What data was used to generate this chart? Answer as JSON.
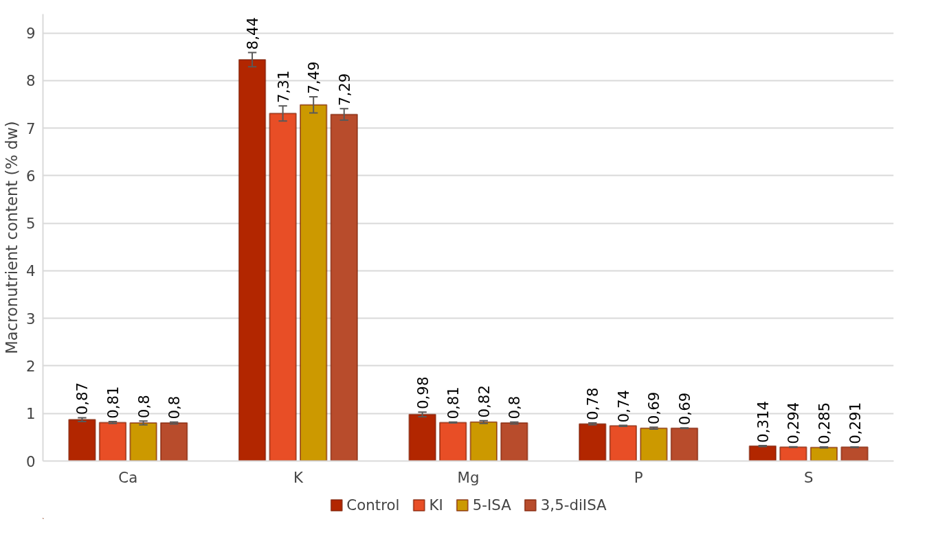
{
  "chart_data": {
    "type": "bar",
    "ylabel": "Macronutrient content (% dw)",
    "categories": [
      "Ca",
      "K",
      "Mg",
      "P",
      "S"
    ],
    "series": [
      {
        "name": "Control",
        "color": "#b22600",
        "values": [
          0.87,
          8.44,
          0.98,
          0.78,
          0.314
        ],
        "errors": [
          0.04,
          0.15,
          0.05,
          0.02,
          0.01
        ],
        "value_labels": [
          "0,87",
          "8,44",
          "0,98",
          "0,78",
          "0,314"
        ]
      },
      {
        "name": "KI",
        "color": "#e84e26",
        "values": [
          0.81,
          7.31,
          0.81,
          0.74,
          0.294
        ],
        "errors": [
          0.02,
          0.16,
          0.01,
          0.01,
          0.005
        ],
        "value_labels": [
          "0,81",
          "7,31",
          "0,81",
          "0,74",
          "0,294"
        ]
      },
      {
        "name": "5-ISA",
        "color": "#cc9900",
        "values": [
          0.8,
          7.49,
          0.82,
          0.69,
          0.285
        ],
        "errors": [
          0.04,
          0.17,
          0.03,
          0.02,
          0.01
        ],
        "value_labels": [
          "0,8",
          "7,49",
          "0,82",
          "0,69",
          "0,285"
        ]
      },
      {
        "name": "3,5-diISA",
        "color": "#b84c2c",
        "values": [
          0.8,
          7.29,
          0.8,
          0.69,
          0.291
        ],
        "errors": [
          0.02,
          0.12,
          0.02,
          0.005,
          0.005
        ],
        "value_labels": [
          "0,8",
          "7,29",
          "0,8",
          "0,69",
          "0,291"
        ]
      }
    ],
    "ylim": [
      0,
      9.4
    ],
    "yticks": [
      0,
      1,
      2,
      3,
      4,
      5,
      6,
      7,
      8,
      9
    ],
    "grid": "y",
    "legend": "bottom"
  }
}
